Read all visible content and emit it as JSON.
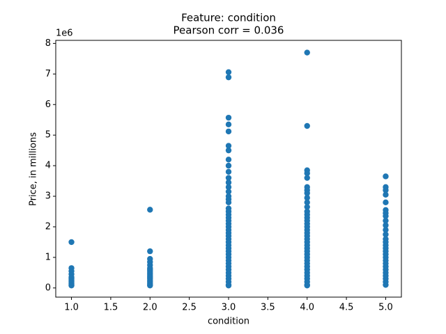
{
  "chart_data": {
    "type": "scatter",
    "title": "Feature: condition",
    "subtitle": "Pearson corr = 0.036",
    "xlabel": "condition",
    "ylabel": "Price, in millions",
    "y_offset_text": "1e6",
    "color": "#1f77b4",
    "x": [
      1,
      1,
      1,
      1,
      1,
      1,
      1,
      1,
      1,
      1,
      1,
      2,
      2,
      2,
      2,
      2,
      2,
      2,
      2,
      2,
      2,
      2,
      2,
      2,
      2,
      2,
      2,
      2,
      2,
      3,
      3,
      3,
      3,
      3,
      3,
      3,
      3,
      3,
      3,
      3,
      3,
      3,
      3,
      3,
      3,
      3,
      3,
      3,
      3,
      3,
      3,
      3,
      3,
      3,
      3,
      3,
      3,
      3,
      3,
      3,
      3,
      3,
      3,
      3,
      3,
      3,
      3,
      3,
      3,
      3,
      3,
      3,
      3,
      4,
      4,
      4,
      4,
      4,
      4,
      4,
      4,
      4,
      4,
      4,
      4,
      4,
      4,
      4,
      4,
      4,
      4,
      4,
      4,
      4,
      4,
      4,
      4,
      4,
      4,
      4,
      4,
      4,
      4,
      4,
      4,
      4,
      4,
      4,
      4,
      4,
      5,
      5,
      5,
      5,
      5,
      5,
      5,
      5,
      5,
      5,
      5,
      5,
      5,
      5,
      5,
      5,
      5,
      5,
      5,
      5,
      5,
      5,
      5,
      5,
      5,
      5,
      5,
      5
    ],
    "values": [
      1.5,
      0.65,
      0.55,
      0.45,
      0.35,
      0.3,
      0.25,
      0.2,
      0.15,
      0.1,
      0.08,
      2.56,
      1.2,
      0.95,
      0.85,
      0.75,
      0.65,
      0.6,
      0.55,
      0.5,
      0.45,
      0.4,
      0.35,
      0.3,
      0.25,
      0.2,
      0.15,
      0.1,
      0.08,
      7.06,
      6.89,
      5.57,
      5.35,
      5.12,
      4.65,
      4.5,
      4.2,
      4.0,
      3.8,
      3.6,
      3.45,
      3.3,
      3.15,
      3.0,
      2.9,
      2.8,
      2.6,
      2.5,
      2.4,
      2.3,
      2.2,
      2.1,
      2.0,
      1.9,
      1.8,
      1.7,
      1.6,
      1.5,
      1.4,
      1.3,
      1.2,
      1.1,
      1.0,
      0.9,
      0.8,
      0.7,
      0.6,
      0.5,
      0.4,
      0.3,
      0.2,
      0.1,
      0.08,
      7.7,
      5.3,
      3.85,
      3.75,
      3.6,
      3.3,
      3.2,
      3.1,
      2.95,
      2.8,
      2.65,
      2.5,
      2.4,
      2.3,
      2.2,
      2.1,
      2.0,
      1.9,
      1.8,
      1.7,
      1.6,
      1.5,
      1.4,
      1.3,
      1.2,
      1.1,
      1.0,
      0.9,
      0.8,
      0.7,
      0.6,
      0.5,
      0.4,
      0.3,
      0.2,
      0.1,
      0.08,
      3.65,
      3.3,
      3.2,
      3.05,
      2.8,
      2.55,
      2.45,
      2.35,
      2.2,
      2.05,
      1.9,
      1.75,
      1.6,
      1.5,
      1.4,
      1.3,
      1.2,
      1.1,
      1.0,
      0.9,
      0.8,
      0.7,
      0.6,
      0.5,
      0.4,
      0.3,
      0.2,
      0.1
    ],
    "xlim": [
      0.8,
      5.2
    ],
    "ylim": [
      -0.3,
      8.1
    ],
    "xticks": [
      {
        "value": 1,
        "label": "1.0"
      },
      {
        "value": 1.5,
        "label": "1.5"
      },
      {
        "value": 2,
        "label": "2.0"
      },
      {
        "value": 2.5,
        "label": "2.5"
      },
      {
        "value": 3,
        "label": "3.0"
      },
      {
        "value": 3.5,
        "label": "3.5"
      },
      {
        "value": 4,
        "label": "4.0"
      },
      {
        "value": 4.5,
        "label": "4.5"
      },
      {
        "value": 5,
        "label": "5.0"
      }
    ],
    "yticks": [
      0,
      1,
      2,
      3,
      4,
      5,
      6,
      7,
      8
    ],
    "grid": false
  }
}
